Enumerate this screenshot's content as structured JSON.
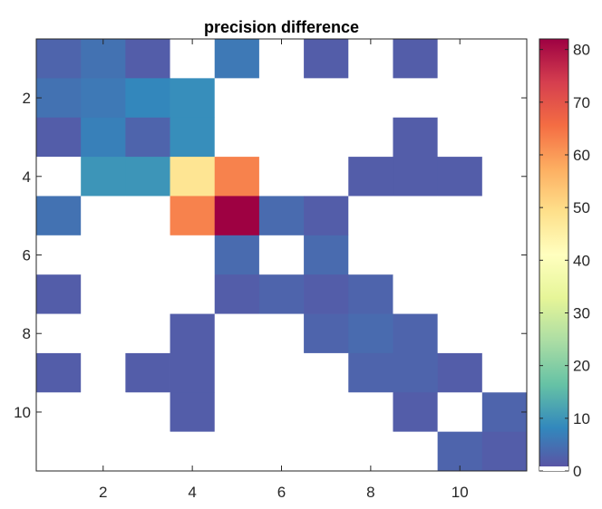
{
  "chart_data": {
    "type": "heatmap",
    "title": "precision difference",
    "xlabel": "",
    "ylabel": "",
    "rows": 11,
    "cols": 11,
    "x_ticks": [
      2,
      4,
      6,
      8,
      10
    ],
    "y_ticks": [
      2,
      4,
      6,
      8,
      10
    ],
    "x_tick_labels": [
      "2",
      "4",
      "6",
      "8",
      "10"
    ],
    "y_tick_labels": [
      "2",
      "4",
      "6",
      "8",
      "10"
    ],
    "colorbar": {
      "min": 0,
      "max": 82,
      "ticks": [
        0,
        10,
        20,
        30,
        40,
        50,
        60,
        70,
        80
      ],
      "tick_labels": [
        "0",
        "10",
        "20",
        "30",
        "40",
        "50",
        "60",
        "70",
        "80"
      ]
    },
    "matrix": [
      [
        3,
        5,
        2,
        0,
        6,
        0,
        2,
        0,
        2,
        0,
        0
      ],
      [
        5,
        6,
        8,
        9,
        0,
        0,
        0,
        0,
        0,
        0,
        0
      ],
      [
        2,
        7,
        3,
        9,
        0,
        0,
        0,
        0,
        2,
        0,
        0
      ],
      [
        0,
        10,
        10,
        48,
        63,
        0,
        0,
        2,
        2,
        2,
        0
      ],
      [
        5,
        0,
        0,
        63,
        82,
        4,
        2,
        0,
        0,
        0,
        0
      ],
      [
        0,
        0,
        0,
        0,
        4,
        0,
        4,
        0,
        0,
        0,
        0
      ],
      [
        2,
        0,
        0,
        0,
        2,
        3,
        2,
        3,
        0,
        0,
        0
      ],
      [
        0,
        0,
        0,
        2,
        0,
        0,
        3,
        4,
        3,
        0,
        0
      ],
      [
        2,
        0,
        2,
        2,
        0,
        0,
        0,
        3,
        3,
        2,
        0
      ],
      [
        0,
        0,
        0,
        2,
        0,
        0,
        0,
        0,
        2,
        0,
        3
      ],
      [
        0,
        0,
        0,
        0,
        0,
        0,
        0,
        0,
        0,
        3,
        2
      ]
    ]
  },
  "colors": {
    "zero": "#ffffff",
    "axis": "#262626",
    "colormap": [
      [
        0.0,
        "#5e4fa2"
      ],
      [
        0.1,
        "#3288bd"
      ],
      [
        0.2,
        "#66c2a5"
      ],
      [
        0.3,
        "#abdda4"
      ],
      [
        0.4,
        "#e6f598"
      ],
      [
        0.5,
        "#ffffbf"
      ],
      [
        0.6,
        "#fee08b"
      ],
      [
        0.7,
        "#fdae61"
      ],
      [
        0.8,
        "#f46d43"
      ],
      [
        0.9,
        "#d53e4f"
      ],
      [
        1.0,
        "#9e0142"
      ]
    ]
  }
}
